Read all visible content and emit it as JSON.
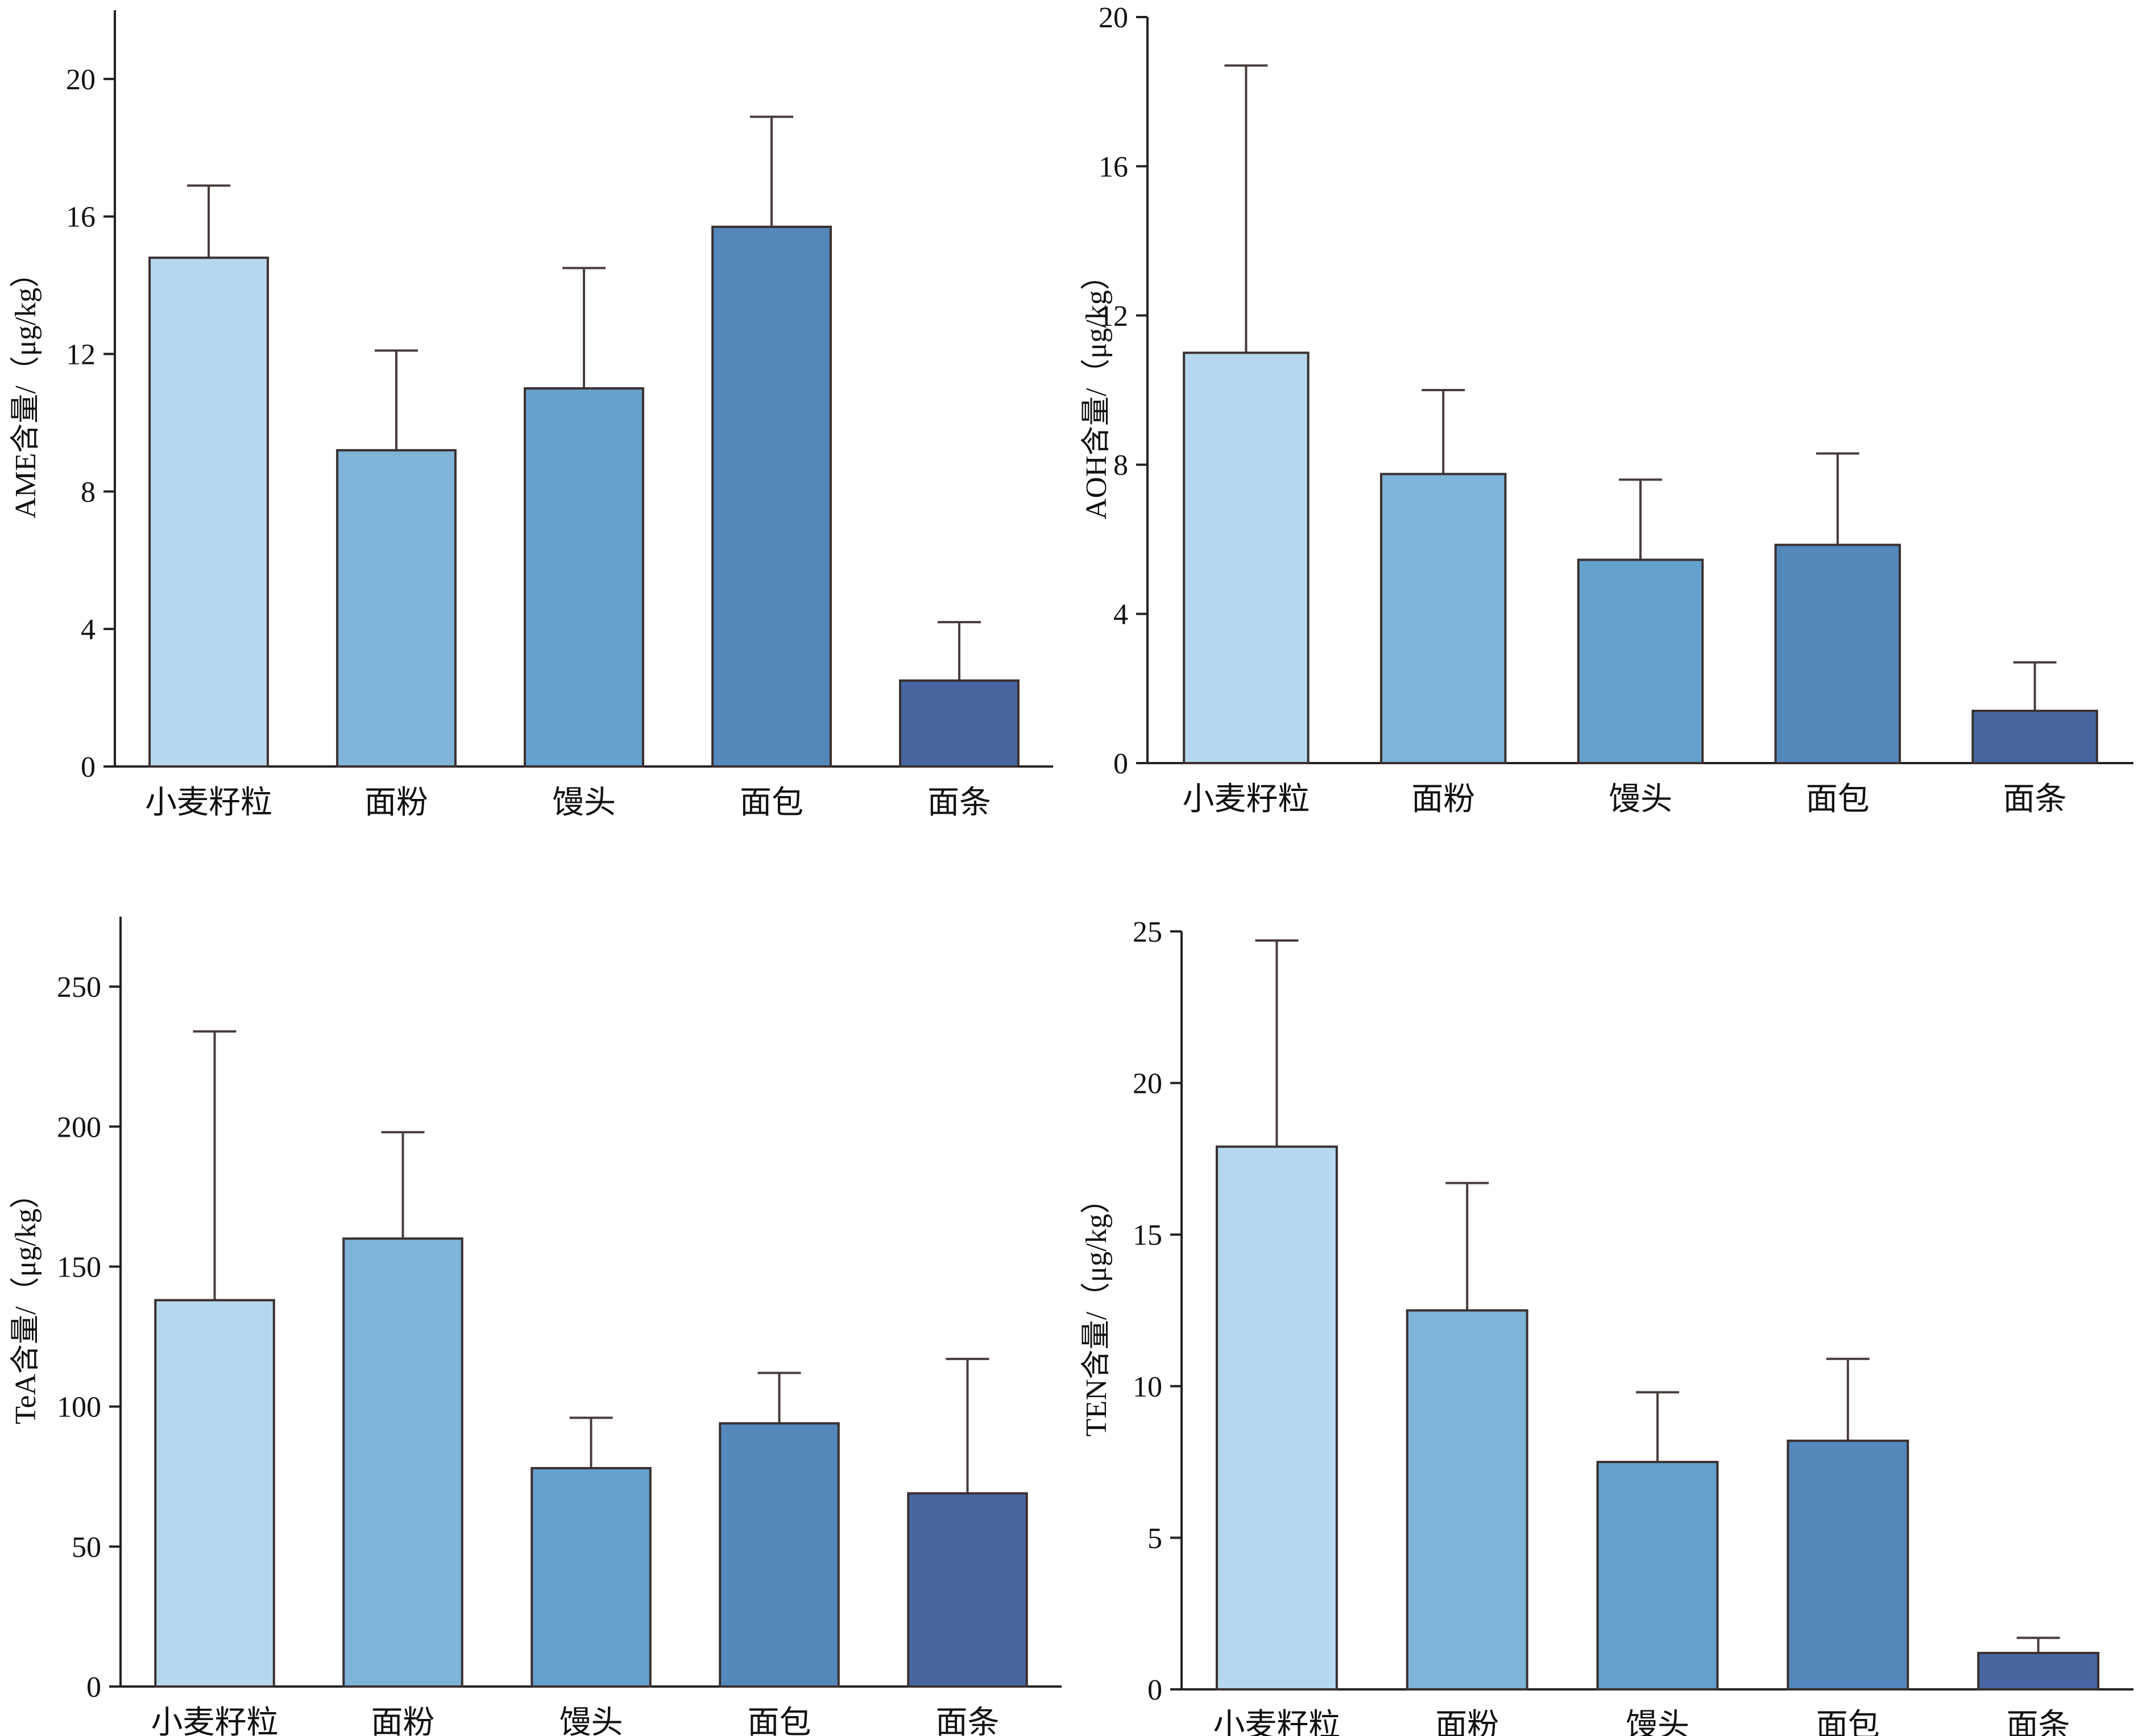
{
  "colors": {
    "bars": [
      "#b5d8ee",
      "#7fb3d8",
      "#65a1cd",
      "#5487bc",
      "#4766a1"
    ],
    "axis": "#222222",
    "error_bar": "#4a3c3c",
    "bar_outline": "#3a3030"
  },
  "chart_data": [
    {
      "type": "bar",
      "categories": [
        "小麦籽粒",
        "面粉",
        "馒头",
        "面包",
        "面条"
      ],
      "values": [
        14.8,
        9.2,
        11.0,
        15.7,
        2.5
      ],
      "errors": [
        2.1,
        2.9,
        3.5,
        3.2,
        1.7
      ],
      "ylabel": "AME含量/（μg/kg）",
      "ylim": [
        0,
        22
      ],
      "yticks": [
        0,
        4,
        8,
        12,
        16,
        20
      ],
      "grid": false,
      "legend": "none"
    },
    {
      "type": "bar",
      "categories": [
        "小麦籽粒",
        "面粉",
        "馒头",
        "面包",
        "面条"
      ],
      "values": [
        11.0,
        7.75,
        5.45,
        5.85,
        1.4
      ],
      "errors": [
        7.7,
        2.25,
        2.15,
        2.45,
        1.3
      ],
      "ylabel": "AOH含量/（μg/kg）",
      "ylim": [
        0,
        20
      ],
      "yticks": [
        0,
        4,
        8,
        12,
        16,
        20
      ],
      "grid": false,
      "legend": "none"
    },
    {
      "type": "bar",
      "categories": [
        "小麦籽粒",
        "面粉",
        "馒头",
        "面包",
        "面条"
      ],
      "values": [
        138,
        160,
        78,
        94,
        69
      ],
      "errors": [
        96,
        38,
        18,
        18,
        48
      ],
      "ylabel": "TeA含量/（μg/kg）",
      "ylim": [
        0,
        275
      ],
      "yticks": [
        0,
        50,
        100,
        150,
        200,
        250
      ],
      "grid": false,
      "legend": "none"
    },
    {
      "type": "bar",
      "categories": [
        "小麦籽粒",
        "面粉",
        "馒头",
        "面包",
        "面条"
      ],
      "values": [
        17.9,
        12.5,
        7.5,
        8.2,
        1.2
      ],
      "errors": [
        6.8,
        4.2,
        2.3,
        2.7,
        0.5
      ],
      "ylabel": "TEN含量/（μg/kg）",
      "ylim": [
        0,
        25
      ],
      "yticks": [
        0,
        5,
        10,
        15,
        20,
        25
      ],
      "grid": false,
      "legend": "none"
    }
  ]
}
